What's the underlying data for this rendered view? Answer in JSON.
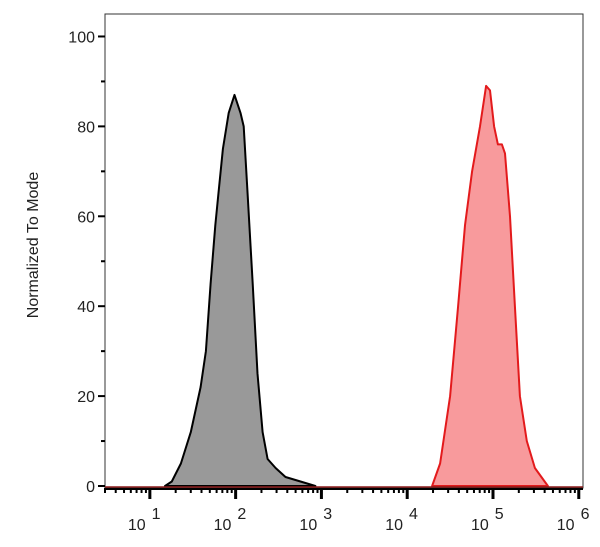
{
  "chart_data": {
    "type": "area",
    "title": "",
    "xlabel": "",
    "ylabel": "Normalized To Mode",
    "xscale": "log",
    "xlim": [
      3,
      1120000
    ],
    "ylim": [
      0,
      105
    ],
    "x_ticks": [
      {
        "base": "10",
        "exp": "1",
        "value": 10
      },
      {
        "base": "10",
        "exp": "2",
        "value": 100
      },
      {
        "base": "10",
        "exp": "3",
        "value": 1000
      },
      {
        "base": "10",
        "exp": "4",
        "value": 10000
      },
      {
        "base": "10",
        "exp": "5",
        "value": 100000
      },
      {
        "base": "10",
        "exp": "6",
        "value": 1000000
      }
    ],
    "y_ticks": [
      "0",
      "20",
      "40",
      "60",
      "80",
      "100"
    ],
    "grid": false,
    "series": [
      {
        "color": "#000000",
        "fill": "#999999",
        "x": [
          15,
          18,
          23,
          30,
          39,
          45,
          51,
          58,
          63,
          71,
          83,
          97,
          105,
          114,
          124,
          138,
          158,
          180,
          206,
          236,
          292,
          381,
          570,
          851
        ],
        "y": [
          0,
          1,
          5,
          12,
          22,
          30,
          45,
          58,
          65,
          75,
          83,
          87,
          85,
          83,
          80,
          65,
          45,
          25,
          12,
          6,
          4,
          2,
          1,
          0
        ]
      },
      {
        "color": "#e31a1c",
        "fill": "#f89a9c",
        "x": [
          19500,
          24200,
          31600,
          39200,
          47200,
          57000,
          70600,
          83000,
          92300,
          103000,
          114000,
          127000,
          138000,
          158000,
          180000,
          206000,
          248000,
          308000,
          437000
        ],
        "y": [
          0,
          5,
          20,
          40,
          58,
          70,
          80,
          89,
          88,
          80,
          76,
          76,
          74,
          60,
          40,
          20,
          10,
          4,
          0
        ]
      }
    ]
  }
}
